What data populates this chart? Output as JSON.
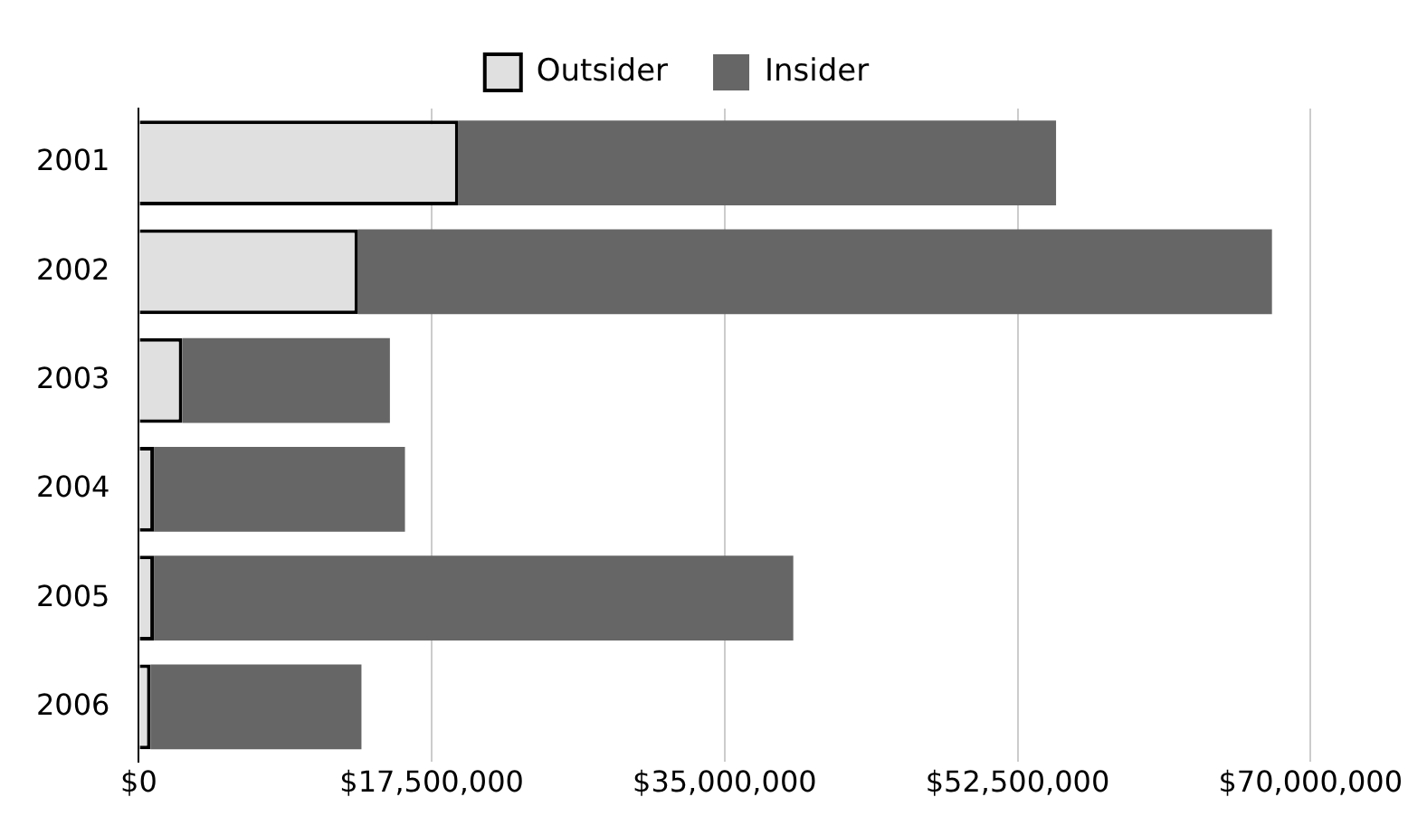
{
  "chart_data": {
    "type": "bar",
    "orientation": "horizontal",
    "stacked": true,
    "categories": [
      "2001",
      "2002",
      "2003",
      "2004",
      "2005",
      "2006"
    ],
    "series": [
      {
        "name": "Outsider",
        "color": "#e0e0e0",
        "values": [
          19100000,
          13100000,
          2600000,
          900000,
          900000,
          700000
        ]
      },
      {
        "name": "Insider",
        "color": "#666666",
        "values": [
          35700000,
          54600000,
          12400000,
          15000000,
          38200000,
          12600000
        ]
      }
    ],
    "xlim": [
      0,
      70000000
    ],
    "xticks": [
      {
        "value": 0,
        "label": "$0"
      },
      {
        "value": 17500000,
        "label": "$17,500,000"
      },
      {
        "value": 35000000,
        "label": "$35,000,000"
      },
      {
        "value": 52500000,
        "label": "$52,500,000"
      },
      {
        "value": 70000000,
        "label": "$70,000,000"
      }
    ],
    "grid": "x",
    "legend": "top"
  }
}
